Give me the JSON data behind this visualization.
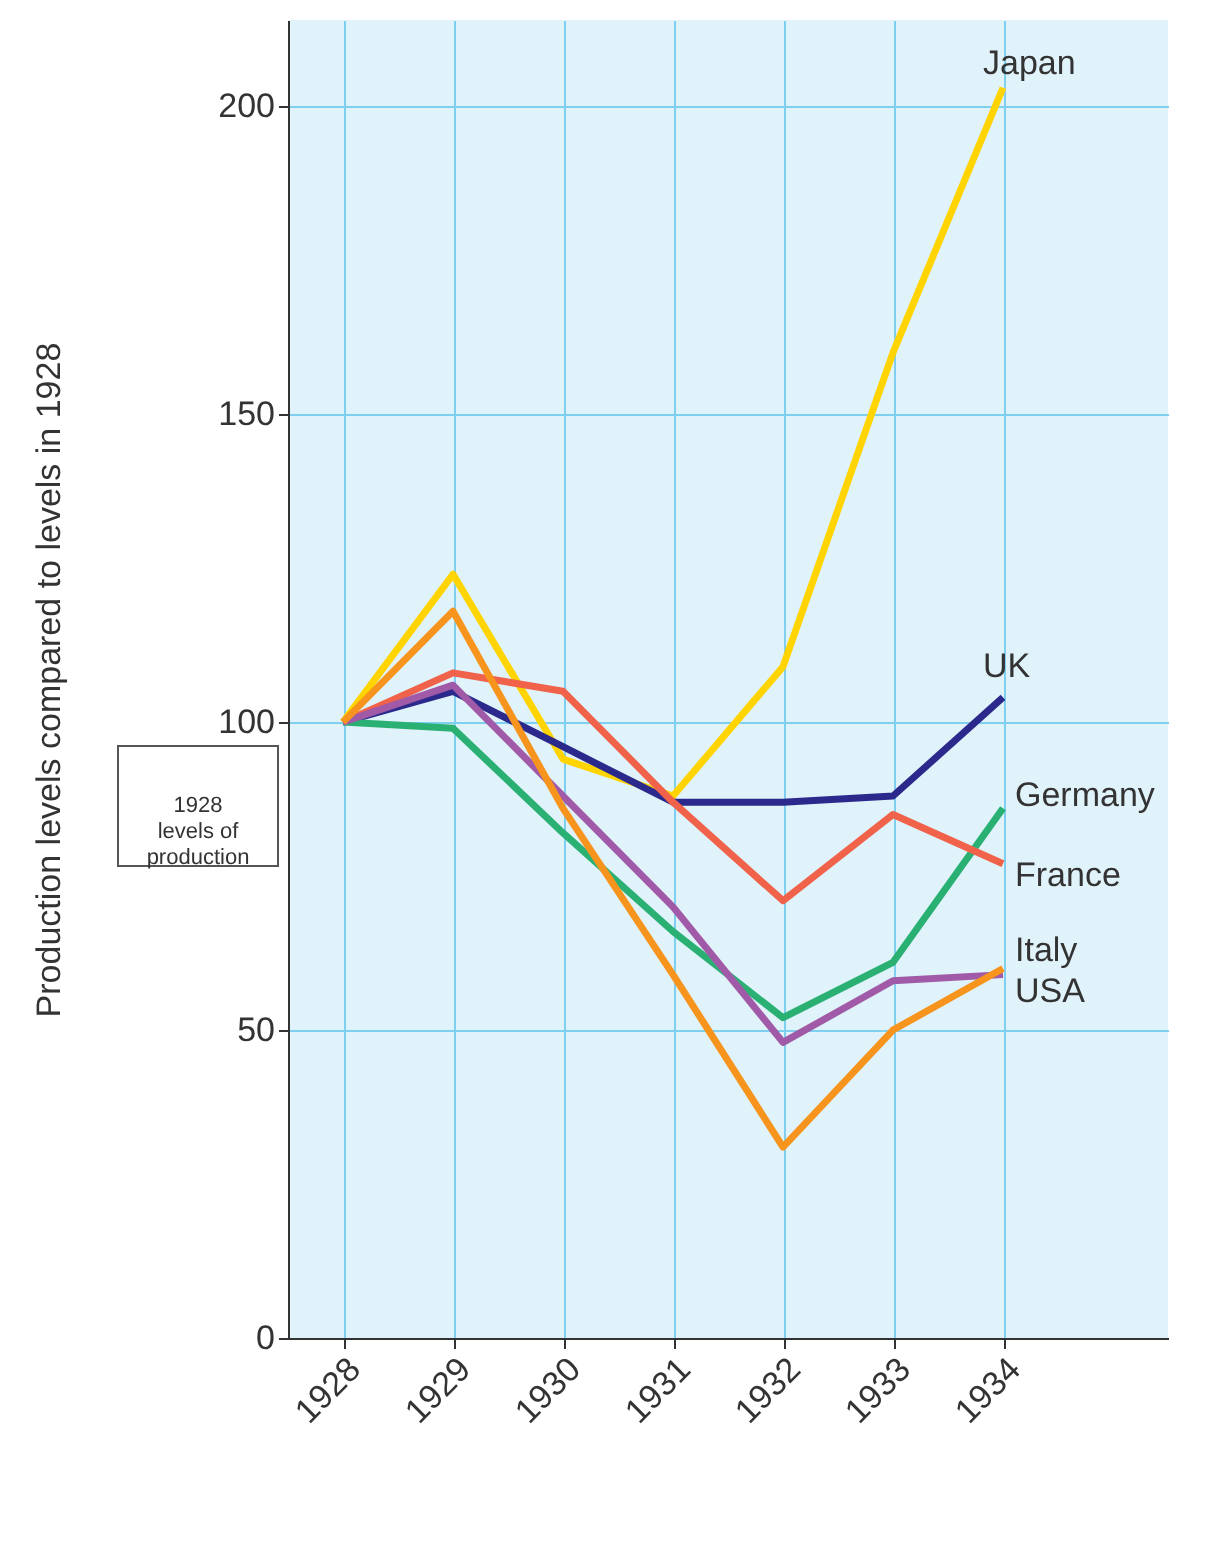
{
  "chart_data": {
    "type": "line",
    "ylabel": "Production levels compared to levels in 1928",
    "x": [
      1928,
      1929,
      1930,
      1931,
      1932,
      1933,
      1934
    ],
    "xlim": [
      1927.5,
      1935.5
    ],
    "xticks": [
      1928,
      1929,
      1930,
      1931,
      1932,
      1933,
      1934
    ],
    "ylim": [
      0,
      214
    ],
    "yticks": [
      0,
      50,
      100,
      150,
      200
    ],
    "grid": true,
    "marker": "none",
    "line_style": "solid",
    "series": [
      {
        "name": "Japan",
        "color": "#ffd400",
        "values": [
          100,
          124,
          94,
          88,
          109,
          160,
          203
        ]
      },
      {
        "name": "UK",
        "color": "#2b2a8c",
        "values": [
          100,
          105,
          96,
          87,
          87,
          88,
          104
        ]
      },
      {
        "name": "Germany",
        "color": "#2bb074",
        "values": [
          100,
          99,
          82,
          66,
          52,
          61,
          86
        ]
      },
      {
        "name": "France",
        "color": "#f0624a",
        "values": [
          100,
          108,
          105,
          87,
          71,
          85,
          77
        ]
      },
      {
        "name": "Italy",
        "color": "#a05aa8",
        "values": [
          100,
          106,
          88,
          70,
          48,
          58,
          59
        ]
      },
      {
        "name": "USA",
        "color": "#f7941d",
        "values": [
          100,
          118,
          86,
          59,
          31,
          50,
          60
        ]
      }
    ],
    "annotations": [
      "1928\nlevels of\nproduction"
    ]
  }
}
